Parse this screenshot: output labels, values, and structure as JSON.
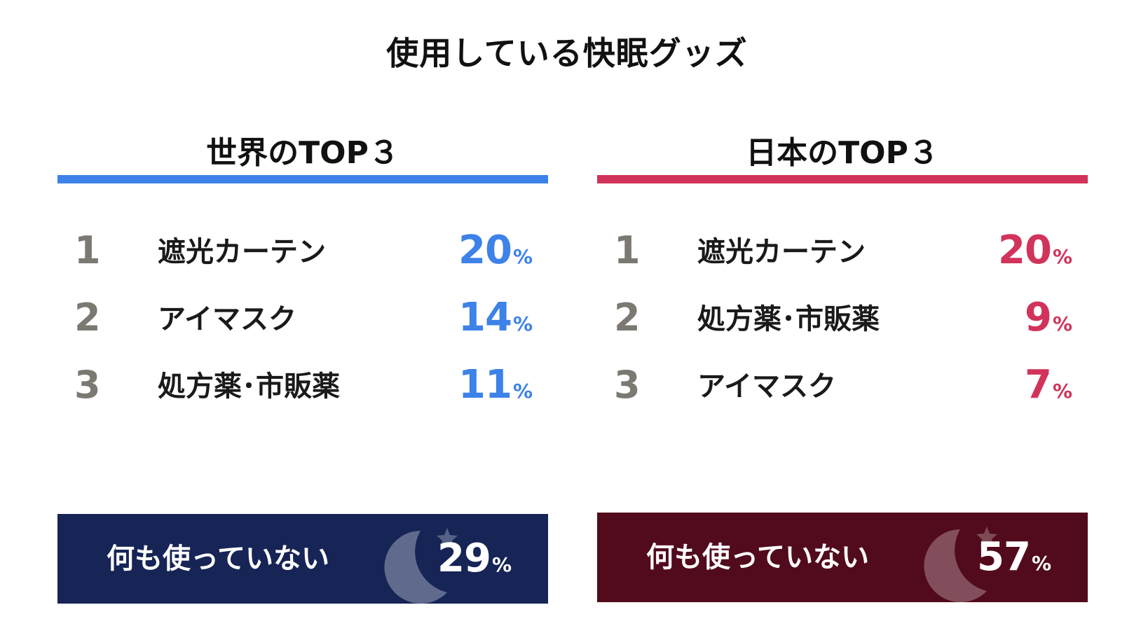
{
  "title": "使用している快眠グッズ",
  "percent_sign": "%",
  "colors": {
    "world_accent": "#3d82e8",
    "japan_accent": "#d2335a",
    "world_box": "#162456",
    "japan_box": "#520b1c",
    "rank_gray": "#7c7872"
  },
  "world": {
    "heading": "世界のTOP３",
    "items": [
      {
        "rank": "1",
        "label": "遮光カーテン",
        "value": "20"
      },
      {
        "rank": "2",
        "label": "アイマスク",
        "value": "14"
      },
      {
        "rank": "3",
        "label": "処方薬･市販薬",
        "value": "11"
      }
    ],
    "nothing": {
      "label": "何も使っていない",
      "value": "29",
      "icon": "moon-star-icon"
    }
  },
  "japan": {
    "heading": "日本のTOP３",
    "items": [
      {
        "rank": "1",
        "label": "遮光カーテン",
        "value": "20"
      },
      {
        "rank": "2",
        "label": "処方薬･市販薬",
        "value": "9"
      },
      {
        "rank": "3",
        "label": "アイマスク",
        "value": "7"
      }
    ],
    "nothing": {
      "label": "何も使っていない",
      "value": "57",
      "icon": "moon-star-icon"
    }
  }
}
